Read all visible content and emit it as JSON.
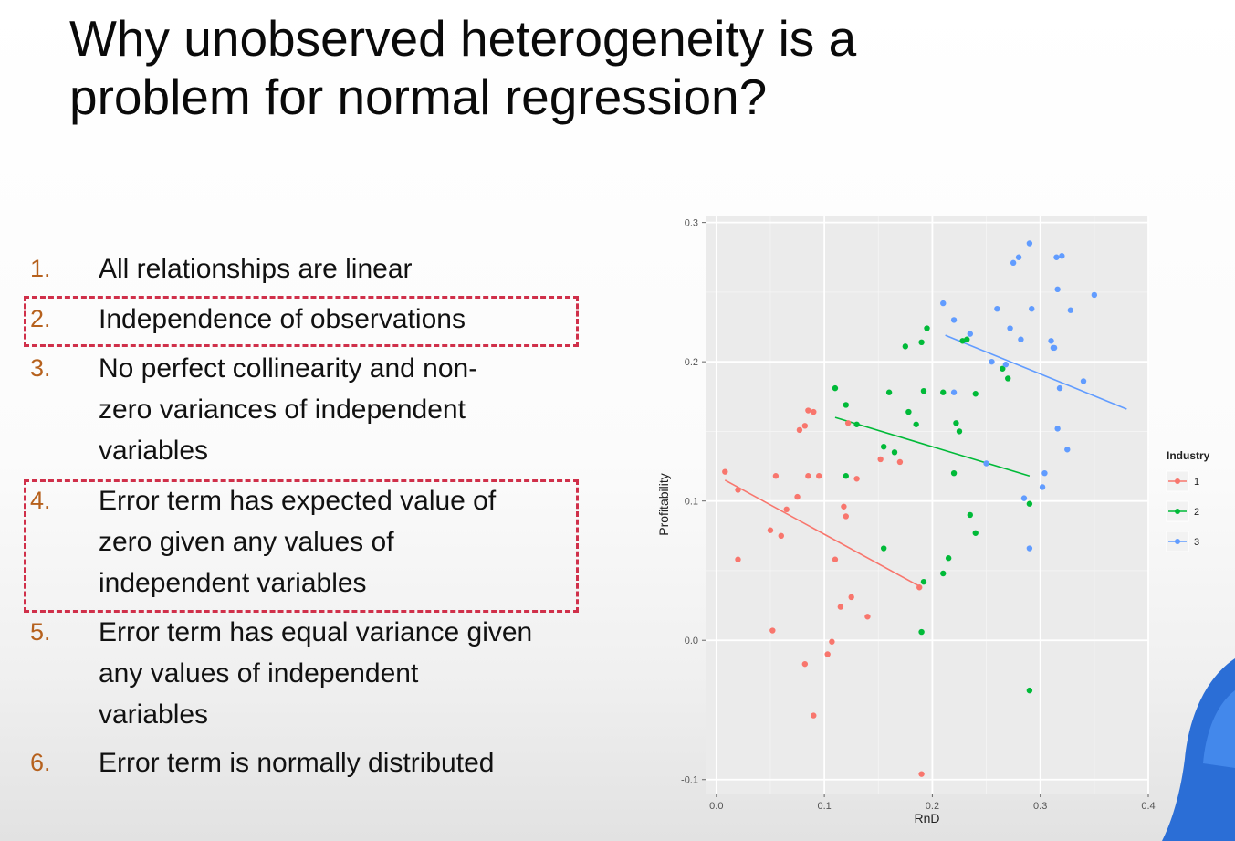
{
  "slide": {
    "title_lines": [
      "Why unobserved heterogeneity is a",
      "problem for normal regression?"
    ]
  },
  "assumptions": [
    {
      "num": "1.",
      "lines": [
        "All relationships are linear"
      ],
      "highlighted": false
    },
    {
      "num": "2.",
      "lines": [
        "Independence of observations"
      ],
      "highlighted": true
    },
    {
      "num": "3.",
      "lines": [
        "No perfect collinearity and non-",
        "zero variances of independent",
        "variables"
      ],
      "highlighted": false
    },
    {
      "num": "4.",
      "lines": [
        "Error term has expected value of",
        "zero given any values of",
        "independent variables"
      ],
      "highlighted": true
    },
    {
      "num": "5.",
      "lines": [
        "Error term has equal variance given",
        "any values of independent",
        "variables"
      ],
      "highlighted": false
    },
    {
      "num": "6.",
      "lines": [
        "Error term is normally distributed"
      ],
      "highlighted": false
    }
  ],
  "colors": {
    "number": "#b6611d",
    "highlight_box": "#d0304a",
    "panel_bg": "#ebebeb",
    "grid": "#ffffff",
    "industry_1": "#f8766d",
    "industry_2": "#00ba38",
    "industry_3": "#619cff"
  },
  "chart_data": {
    "type": "scatter",
    "xlabel": "RnD",
    "ylabel": "Profitability",
    "xlim": [
      -0.01,
      0.4
    ],
    "ylim": [
      -0.11,
      0.305
    ],
    "xticks": [
      0.0,
      0.1,
      0.2,
      0.3,
      0.4
    ],
    "xtick_labels": [
      "0.0",
      "0.1",
      "0.2",
      "0.3",
      "0.4"
    ],
    "yticks": [
      -0.1,
      0.0,
      0.1,
      0.2,
      0.3
    ],
    "ytick_labels": [
      "-0.1",
      "0.0",
      "0.1",
      "0.2",
      "0.3"
    ],
    "grid": true,
    "legend": {
      "title": "Industry",
      "position": "right"
    },
    "series": [
      {
        "name": "1",
        "color": "#f8766d",
        "points": [
          [
            0.008,
            0.121
          ],
          [
            0.02,
            0.108
          ],
          [
            0.02,
            0.058
          ],
          [
            0.05,
            0.079
          ],
          [
            0.055,
            0.118
          ],
          [
            0.06,
            0.075
          ],
          [
            0.065,
            0.094
          ],
          [
            0.075,
            0.103
          ],
          [
            0.077,
            0.151
          ],
          [
            0.082,
            0.154
          ],
          [
            0.085,
            0.118
          ],
          [
            0.09,
            0.164
          ],
          [
            0.11,
            0.058
          ],
          [
            0.115,
            0.024
          ],
          [
            0.118,
            0.096
          ],
          [
            0.12,
            0.089
          ],
          [
            0.122,
            0.156
          ],
          [
            0.125,
            0.031
          ],
          [
            0.13,
            0.116
          ],
          [
            0.14,
            0.017
          ],
          [
            0.152,
            0.13
          ],
          [
            0.17,
            0.128
          ],
          [
            0.188,
            0.038
          ],
          [
            0.052,
            0.007
          ],
          [
            0.082,
            -0.017
          ],
          [
            0.103,
            -0.01
          ],
          [
            0.107,
            -0.001
          ],
          [
            0.09,
            -0.054
          ],
          [
            0.19,
            -0.096
          ],
          [
            0.095,
            0.118
          ],
          [
            0.085,
            0.165
          ]
        ],
        "fit": [
          [
            0.008,
            0.115
          ],
          [
            0.19,
            0.038
          ]
        ]
      },
      {
        "name": "2",
        "color": "#00ba38",
        "points": [
          [
            0.11,
            0.181
          ],
          [
            0.12,
            0.169
          ],
          [
            0.12,
            0.118
          ],
          [
            0.13,
            0.155
          ],
          [
            0.155,
            0.139
          ],
          [
            0.16,
            0.178
          ],
          [
            0.165,
            0.135
          ],
          [
            0.175,
            0.211
          ],
          [
            0.178,
            0.164
          ],
          [
            0.185,
            0.155
          ],
          [
            0.19,
            0.214
          ],
          [
            0.192,
            0.179
          ],
          [
            0.195,
            0.224
          ],
          [
            0.21,
            0.178
          ],
          [
            0.215,
            0.059
          ],
          [
            0.222,
            0.156
          ],
          [
            0.225,
            0.15
          ],
          [
            0.228,
            0.215
          ],
          [
            0.232,
            0.216
          ],
          [
            0.235,
            0.09
          ],
          [
            0.24,
            0.077
          ],
          [
            0.24,
            0.177
          ],
          [
            0.265,
            0.195
          ],
          [
            0.27,
            0.188
          ],
          [
            0.29,
            0.098
          ],
          [
            0.192,
            0.042
          ],
          [
            0.19,
            0.006
          ],
          [
            0.29,
            -0.036
          ],
          [
            0.155,
            0.066
          ],
          [
            0.21,
            0.048
          ],
          [
            0.22,
            0.12
          ]
        ],
        "fit": [
          [
            0.11,
            0.16
          ],
          [
            0.29,
            0.118
          ]
        ]
      },
      {
        "name": "3",
        "color": "#619cff",
        "points": [
          [
            0.21,
            0.242
          ],
          [
            0.22,
            0.178
          ],
          [
            0.22,
            0.23
          ],
          [
            0.235,
            0.22
          ],
          [
            0.25,
            0.127
          ],
          [
            0.255,
            0.2
          ],
          [
            0.26,
            0.238
          ],
          [
            0.268,
            0.198
          ],
          [
            0.272,
            0.224
          ],
          [
            0.275,
            0.271
          ],
          [
            0.28,
            0.275
          ],
          [
            0.282,
            0.216
          ],
          [
            0.285,
            0.102
          ],
          [
            0.29,
            0.285
          ],
          [
            0.292,
            0.238
          ],
          [
            0.29,
            0.066
          ],
          [
            0.302,
            0.11
          ],
          [
            0.304,
            0.12
          ],
          [
            0.31,
            0.215
          ],
          [
            0.312,
            0.21
          ],
          [
            0.313,
            0.21
          ],
          [
            0.316,
            0.152
          ],
          [
            0.318,
            0.181
          ],
          [
            0.315,
            0.275
          ],
          [
            0.32,
            0.276
          ],
          [
            0.325,
            0.137
          ],
          [
            0.328,
            0.237
          ],
          [
            0.34,
            0.186
          ],
          [
            0.35,
            0.248
          ],
          [
            0.316,
            0.252
          ]
        ],
        "fit": [
          [
            0.212,
            0.219
          ],
          [
            0.38,
            0.166
          ]
        ]
      }
    ]
  }
}
